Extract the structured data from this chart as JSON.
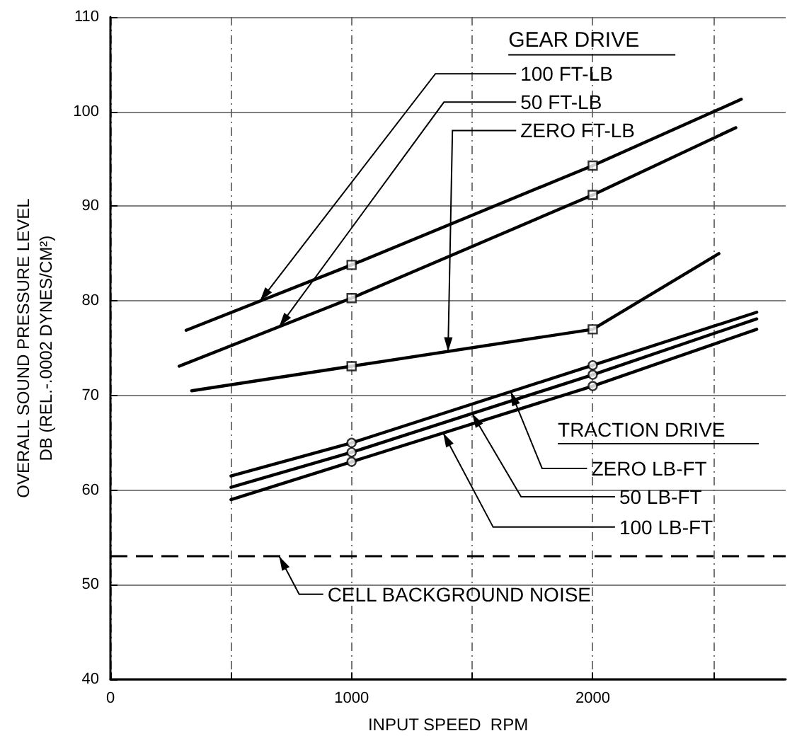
{
  "chart_data": {
    "type": "line",
    "xlabel": "INPUT SPEED  RPM",
    "ylabel": "OVERALL SOUND PRESSURE LEVEL\nDB (REL.-.0002 DYNES/CM²)",
    "xlim": [
      0,
      2800
    ],
    "xticks": [
      0,
      {
        "value": 500,
        "label": null
      },
      1000,
      {
        "value": 1500,
        "label": null
      },
      2000,
      {
        "value": 2500,
        "label": null
      }
    ],
    "ylim": [
      40,
      110
    ],
    "yticks": [
      40,
      50,
      60,
      70,
      80,
      90,
      100,
      110
    ],
    "grid": true,
    "legend": false,
    "marker": "none",
    "line_style": "solid",
    "series": [
      {
        "name": "100 FT-LB",
        "color": "#000000",
        "x": [
          314,
          1000,
          2000,
          2616
        ],
        "values": [
          76.9,
          83.8,
          94.3,
          101.3
        ]
      },
      {
        "name": "50 FT-LB",
        "color": "#000000",
        "x": [
          285,
          1000,
          2000,
          2593
        ],
        "values": [
          73.1,
          80.3,
          91.2,
          98.3
        ]
      },
      {
        "name": "ZERO FT-LB",
        "color": "#000000",
        "x": [
          337,
          1000,
          2000,
          2523
        ],
        "values": [
          70.5,
          73.1,
          77.0,
          85.0
        ]
      },
      {
        "name": "ZERO LB-FT",
        "color": "#000000",
        "x": [
          500,
          1000,
          2000,
          2680
        ],
        "values": [
          61.5,
          65.0,
          73.2,
          78.8
        ]
      },
      {
        "name": "50 LB-FT",
        "color": "#000000",
        "x": [
          500,
          1000,
          2000,
          2680
        ],
        "values": [
          60.3,
          64.0,
          72.2,
          78.1
        ]
      },
      {
        "name": "100 LB-FT",
        "color": "#000000",
        "x": [
          500,
          1000,
          2000,
          2680
        ],
        "values": [
          59.0,
          63.0,
          71.0,
          77.0
        ]
      },
      {
        "type": "scatter",
        "marker": "square",
        "color": "#000000",
        "x": [
          1000,
          1000,
          1000,
          2000,
          2000,
          2000
        ],
        "values": [
          83.8,
          80.3,
          73.1,
          94.3,
          91.2,
          77.0
        ]
      },
      {
        "type": "scatter",
        "marker": "circle",
        "color": "#000000",
        "x": [
          1000,
          1000,
          1000,
          2000,
          2000,
          2000
        ],
        "values": [
          65.0,
          64.0,
          63.0,
          73.2,
          72.2,
          71.0
        ]
      }
    ],
    "ref_lines": [
      {
        "axis": "y",
        "value": 53,
        "label": "CELL BACKGROUND NOISE",
        "line_style": "dashed",
        "color": "#000000"
      }
    ],
    "annotations": [
      "GEAR DRIVE",
      "TRACTION DRIVE"
    ]
  }
}
